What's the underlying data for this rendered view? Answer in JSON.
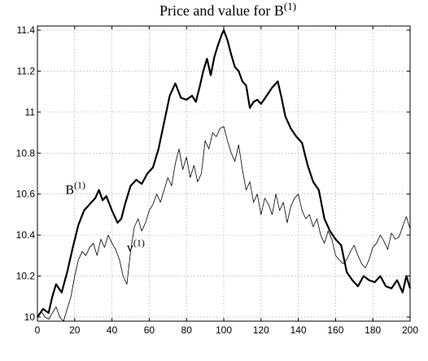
{
  "chart_data": {
    "type": "line",
    "title": "Price and value for B",
    "title_sup": "(1)",
    "xlabel": "",
    "ylabel": "",
    "xlim": [
      0,
      200
    ],
    "ylim": [
      9.98,
      11.42
    ],
    "grid": true,
    "x_ticks": [
      0,
      20,
      40,
      60,
      80,
      100,
      120,
      140,
      160,
      180,
      200
    ],
    "y_ticks": [
      10,
      10.2,
      10.4,
      10.6,
      10.8,
      11,
      11.2,
      11.4
    ],
    "annotations": [
      {
        "text": "B",
        "sup": "(1)",
        "series": 0,
        "x": 15,
        "y": 10.6
      },
      {
        "text": "v",
        "sup": "(1)",
        "series": 1,
        "x": 48,
        "y": 10.32
      }
    ],
    "series": [
      {
        "name": "B(1)",
        "color": "#000000",
        "line_width": 2.2,
        "x": [
          0,
          3,
          6,
          8,
          10,
          13,
          16,
          19,
          22,
          25,
          28,
          31,
          33,
          35,
          37,
          40,
          43,
          45,
          47,
          50,
          53,
          56,
          59,
          62,
          65,
          68,
          71,
          74,
          77,
          80,
          83,
          85,
          87,
          89,
          91,
          93,
          95,
          97,
          99,
          100,
          102,
          104,
          106,
          108,
          110,
          112,
          114,
          116,
          118,
          120,
          123,
          126,
          129,
          131,
          133,
          136,
          139,
          142,
          145,
          148,
          151,
          154,
          157,
          160,
          163,
          166,
          169,
          172,
          175,
          178,
          181,
          184,
          187,
          190,
          193,
          196,
          198,
          200
        ],
        "values": [
          10.0,
          10.04,
          10.02,
          10.1,
          10.16,
          10.12,
          10.22,
          10.34,
          10.45,
          10.52,
          10.55,
          10.58,
          10.62,
          10.57,
          10.59,
          10.52,
          10.46,
          10.48,
          10.55,
          10.64,
          10.67,
          10.65,
          10.7,
          10.73,
          10.82,
          10.95,
          11.08,
          11.14,
          11.07,
          11.06,
          11.08,
          11.05,
          11.12,
          11.2,
          11.26,
          11.18,
          11.27,
          11.33,
          11.38,
          11.4,
          11.35,
          11.28,
          11.22,
          11.2,
          11.15,
          11.13,
          11.02,
          11.05,
          11.06,
          11.04,
          11.08,
          11.12,
          11.15,
          11.07,
          10.98,
          10.92,
          10.88,
          10.85,
          10.74,
          10.66,
          10.62,
          10.48,
          10.42,
          10.38,
          10.35,
          10.22,
          10.18,
          10.15,
          10.2,
          10.18,
          10.17,
          10.2,
          10.15,
          10.14,
          10.18,
          10.12,
          10.2,
          10.14
        ]
      },
      {
        "name": "v(1)",
        "color": "#000000",
        "line_width": 0.8,
        "x": [
          0,
          2,
          4,
          6,
          8,
          10,
          12,
          14,
          16,
          18,
          20,
          22,
          24,
          26,
          28,
          30,
          32,
          34,
          36,
          38,
          40,
          42,
          44,
          46,
          48,
          50,
          52,
          54,
          56,
          58,
          60,
          62,
          64,
          66,
          68,
          70,
          72,
          74,
          76,
          78,
          80,
          82,
          84,
          86,
          88,
          90,
          92,
          94,
          96,
          98,
          100,
          102,
          104,
          106,
          108,
          110,
          112,
          114,
          116,
          118,
          120,
          122,
          124,
          126,
          128,
          130,
          132,
          134,
          136,
          138,
          140,
          142,
          144,
          146,
          148,
          150,
          152,
          154,
          156,
          158,
          160,
          162,
          164,
          166,
          168,
          170,
          172,
          174,
          176,
          178,
          180,
          182,
          184,
          186,
          188,
          190,
          192,
          194,
          196,
          198,
          200
        ],
        "values": [
          10.0,
          10.03,
          10.0,
          9.99,
          10.02,
          10.05,
          10.0,
          9.98,
          10.04,
          10.1,
          10.2,
          10.28,
          10.32,
          10.3,
          10.34,
          10.36,
          10.3,
          10.38,
          10.34,
          10.4,
          10.36,
          10.33,
          10.28,
          10.2,
          10.16,
          10.32,
          10.44,
          10.48,
          10.42,
          10.46,
          10.52,
          10.55,
          10.6,
          10.56,
          10.62,
          10.68,
          10.64,
          10.75,
          10.82,
          10.72,
          10.78,
          10.68,
          10.74,
          10.66,
          10.7,
          10.86,
          10.82,
          10.9,
          10.88,
          10.92,
          10.93,
          10.86,
          10.8,
          10.76,
          10.84,
          10.72,
          10.62,
          10.66,
          10.56,
          10.6,
          10.5,
          10.58,
          10.55,
          10.5,
          10.6,
          10.52,
          10.56,
          10.46,
          10.54,
          10.58,
          10.6,
          10.52,
          10.48,
          10.5,
          10.44,
          10.48,
          10.4,
          10.36,
          10.42,
          10.38,
          10.3,
          10.28,
          10.26,
          10.28,
          10.32,
          10.35,
          10.3,
          10.26,
          10.24,
          10.28,
          10.34,
          10.36,
          10.4,
          10.37,
          10.33,
          10.41,
          10.38,
          10.39,
          10.44,
          10.49,
          10.43
        ]
      }
    ]
  }
}
